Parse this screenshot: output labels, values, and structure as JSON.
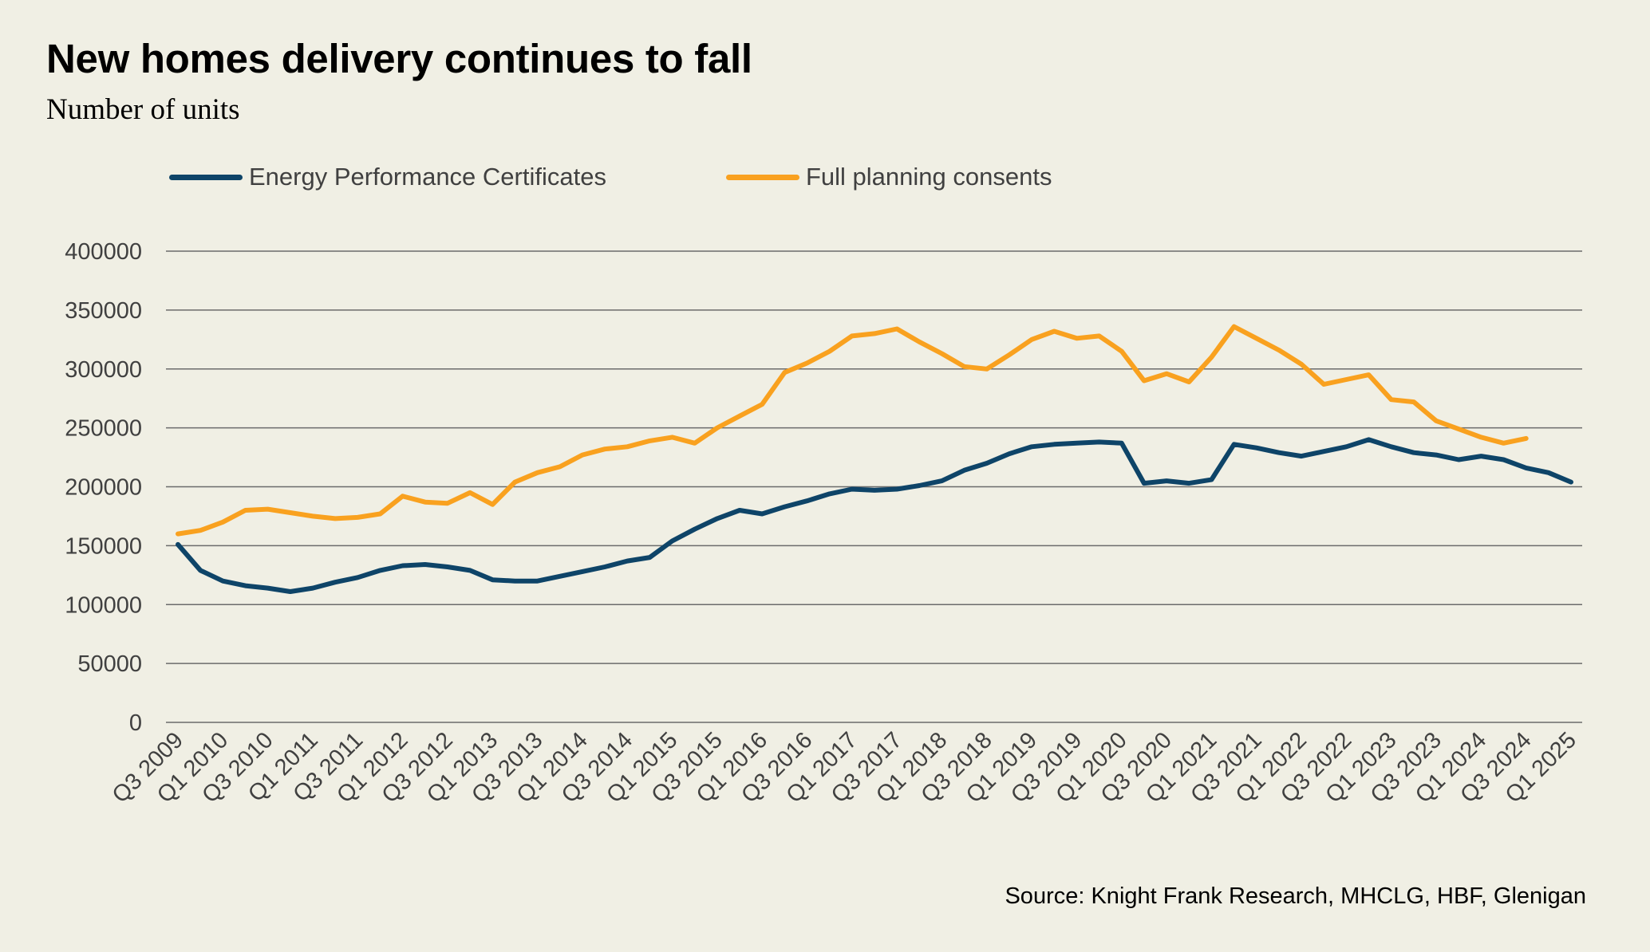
{
  "header": {
    "title": "New homes delivery continues to fall",
    "subtitle": "Number of units"
  },
  "legend": [
    {
      "label": "Energy Performance Certificates",
      "color": "#0e4468"
    },
    {
      "label": "Full planning consents",
      "color": "#f9a11f"
    }
  ],
  "source": "Source: Knight Frank Research, MHCLG, HBF, Glenigan",
  "chart_data": {
    "type": "line",
    "title": "New homes delivery continues to fall",
    "subtitle": "Number of units",
    "xlabel": "",
    "ylabel": "",
    "ylim": [
      0,
      400000
    ],
    "yticks": [
      0,
      50000,
      100000,
      150000,
      200000,
      250000,
      300000,
      350000,
      400000
    ],
    "grid": true,
    "legend_position": "top",
    "x": [
      "Q3 2009",
      "Q4 2009",
      "Q1 2010",
      "Q2 2010",
      "Q3 2010",
      "Q4 2010",
      "Q1 2011",
      "Q2 2011",
      "Q3 2011",
      "Q4 2011",
      "Q1 2012",
      "Q2 2012",
      "Q3 2012",
      "Q4 2012",
      "Q1 2013",
      "Q2 2013",
      "Q3 2013",
      "Q4 2013",
      "Q1 2014",
      "Q2 2014",
      "Q3 2014",
      "Q4 2014",
      "Q1 2015",
      "Q2 2015",
      "Q3 2015",
      "Q4 2015",
      "Q1 2016",
      "Q2 2016",
      "Q3 2016",
      "Q4 2016",
      "Q1 2017",
      "Q2 2017",
      "Q3 2017",
      "Q4 2017",
      "Q1 2018",
      "Q2 2018",
      "Q3 2018",
      "Q4 2018",
      "Q1 2019",
      "Q2 2019",
      "Q3 2019",
      "Q4 2019",
      "Q1 2020",
      "Q2 2020",
      "Q3 2020",
      "Q4 2020",
      "Q1 2021",
      "Q2 2021",
      "Q3 2021",
      "Q4 2021",
      "Q1 2022",
      "Q2 2022",
      "Q3 2022",
      "Q4 2022",
      "Q1 2023",
      "Q2 2023",
      "Q3 2023",
      "Q4 2023",
      "Q1 2024",
      "Q2 2024",
      "Q3 2024",
      "Q4 2024",
      "Q1 2025"
    ],
    "xtick_labels": [
      "Q3 2009",
      "Q1 2010",
      "Q3 2010",
      "Q1 2011",
      "Q3 2011",
      "Q1 2012",
      "Q3 2012",
      "Q1 2013",
      "Q3 2013",
      "Q1 2014",
      "Q3 2014",
      "Q1 2015",
      "Q3 2015",
      "Q1 2016",
      "Q3 2016",
      "Q1 2017",
      "Q3 2017",
      "Q1 2018",
      "Q3 2018",
      "Q1 2019",
      "Q3 2019",
      "Q1 2020",
      "Q3 2020",
      "Q1 2021",
      "Q3 2021",
      "Q1 2022",
      "Q3 2022",
      "Q1 2023",
      "Q3 2023",
      "Q1 2024",
      "Q3 2024",
      "Q1 2025"
    ],
    "series": [
      {
        "name": "Energy Performance Certificates",
        "color": "#0e4468",
        "values": [
          151000,
          129000,
          120000,
          116000,
          114000,
          111000,
          114000,
          119000,
          123000,
          129000,
          133000,
          134000,
          132000,
          129000,
          121000,
          120000,
          120000,
          124000,
          128000,
          132000,
          137000,
          140000,
          154000,
          164000,
          173000,
          180000,
          177000,
          183000,
          188000,
          194000,
          198000,
          197000,
          198000,
          201000,
          205000,
          214000,
          220000,
          228000,
          234000,
          236000,
          237000,
          238000,
          237000,
          203000,
          205000,
          203000,
          206000,
          236000,
          233000,
          229000,
          226000,
          230000,
          234000,
          240000,
          234000,
          229000,
          227000,
          223000,
          226000,
          223000,
          216000,
          212000,
          204000
        ]
      },
      {
        "name": "Full planning consents",
        "color": "#f9a11f",
        "values": [
          160000,
          163000,
          170000,
          180000,
          181000,
          178000,
          175000,
          173000,
          174000,
          177000,
          192000,
          187000,
          186000,
          195000,
          185000,
          204000,
          212000,
          217000,
          227000,
          232000,
          234000,
          239000,
          242000,
          237000,
          250000,
          260000,
          270000,
          297000,
          305000,
          315000,
          328000,
          330000,
          334000,
          323000,
          313000,
          302000,
          300000,
          312000,
          325000,
          332000,
          326000,
          328000,
          315000,
          290000,
          296000,
          289000,
          310000,
          336000,
          326000,
          316000,
          304000,
          287000,
          291000,
          295000,
          274000,
          272000,
          256000,
          249000,
          242000,
          237000,
          241000,
          null,
          null
        ]
      }
    ]
  }
}
